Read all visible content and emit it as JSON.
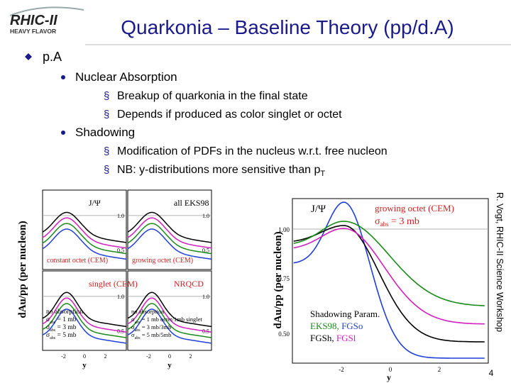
{
  "header": {
    "logo": {
      "name": "RHIC-II",
      "tagline": "HEAVY FLAVOR"
    },
    "title": "Quarkonia –  Baseline Theory (pp/d.A)"
  },
  "bullets": [
    {
      "text": "p.A",
      "items": [
        {
          "text": "Nuclear Absorption",
          "items": [
            {
              "text": "Breakup of quarkonia in the final state"
            },
            {
              "text": "Depends if produced as color singlet or octet"
            }
          ]
        },
        {
          "text": "Shadowing",
          "items": [
            {
              "text": "Modification of PDFs in the nucleus w.r.t. free nucleon"
            },
            {
              "text": "NB: y-distributions more sensitive than p",
              "sub": "T"
            }
          ]
        }
      ]
    }
  ],
  "figure_left": {
    "y_label": "dAu/pp (per nucleon)",
    "x_label": "y",
    "yticks": [
      "1.0",
      "0.5"
    ],
    "xticks": [
      "-2",
      "0",
      "2"
    ],
    "panels": [
      {
        "title": "J/Ψ",
        "caption": "constant octet (CEM)"
      },
      {
        "title": "all EKS98",
        "caption": "growing octet (CEM)"
      },
      {
        "title": "singlet (CEM)",
        "legend": [
          {
            "text": "no absorption"
          },
          {
            "pre": "σ",
            "sub": "abs",
            "text": " = 1 mb"
          },
          {
            "pre": "σ",
            "sub": "abs",
            "text": " = 3 mb"
          },
          {
            "pre": "σ",
            "sub": "abs",
            "text": " = 5 mb"
          }
        ]
      },
      {
        "title": "NRQCD",
        "legend": [
          {
            "text": "no absorption"
          },
          {
            "pre": "σ",
            "sub": "abs",
            "text": " = 1 mb octet/1mb singlet"
          },
          {
            "pre": "σ",
            "sub": "abs",
            "text": " = 3 mb/3mb"
          },
          {
            "pre": "σ",
            "sub": "abs",
            "text": " = 5 mb/5mb"
          }
        ]
      }
    ]
  },
  "figure_right": {
    "y_label": "dAu/pp (per nucleon)",
    "x_label": "y",
    "yticks": [
      "1.00",
      "0.75",
      "0.50"
    ],
    "xticks": [
      "-2",
      "0",
      "2"
    ],
    "title": "J/Ψ",
    "caption": {
      "text": "growing octet (CEM)",
      "sigma": {
        "pre": "σ",
        "sub": "abs",
        "text": " = 3 mb"
      }
    },
    "legend": {
      "title": "Shadowing Param.",
      "rows": [
        [
          {
            "text": "EKS98,",
            "color": "#1a8a1a"
          },
          {
            "text": " FGSo",
            "color": "#1f3fd8"
          }
        ],
        [
          {
            "text": "FGSh,",
            "color": "#000000"
          },
          {
            "text": " FGSl",
            "color": "#d21fbf"
          }
        ]
      ]
    }
  },
  "side_note": "R. Vogt, RHIC-II Science Workshop",
  "page_number": "4"
}
